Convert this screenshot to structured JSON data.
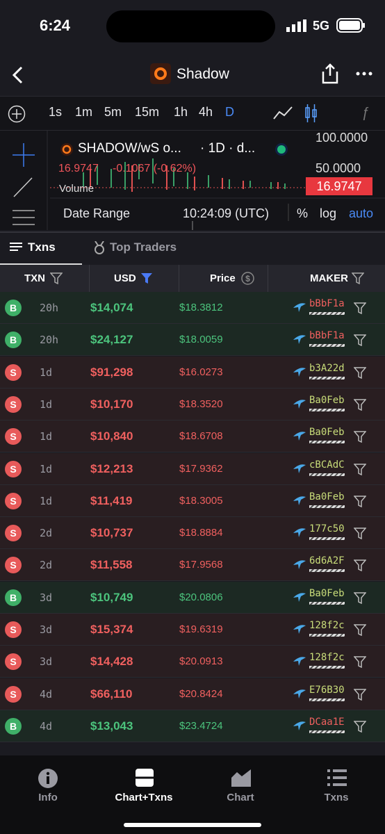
{
  "status": {
    "time": "6:24",
    "network": "5G"
  },
  "header": {
    "title": "Shadow"
  },
  "toolbar": {
    "timeframes": [
      "1s",
      "1m",
      "5m",
      "15m",
      "1h",
      "4h",
      "D"
    ]
  },
  "chart": {
    "pair": "SHADOW/wS o...",
    "interval": "· 1D · d...",
    "price": "16.9747",
    "change": "-0.1067 (-0.62%)",
    "volume_label": "Volume",
    "axis_top": "100.0000",
    "axis_mid": "50.0000",
    "last_price": "16.9747",
    "date_range": "Date Range",
    "clock": "10:24:09 (UTC)",
    "percent": "%",
    "log": "log",
    "auto": "auto"
  },
  "tabs": [
    "Txns",
    "Top Traders"
  ],
  "table": {
    "columns": [
      "TXN",
      "USD",
      "Price",
      "MAKER"
    ],
    "rows": [
      {
        "side": "B",
        "age": "20h",
        "usd": "$14,074",
        "price": "$18.3812",
        "maker": "bBbF1a",
        "maker_color": "#f0605f"
      },
      {
        "side": "B",
        "age": "20h",
        "usd": "$24,127",
        "price": "$18.0059",
        "maker": "bBbF1a",
        "maker_color": "#f0605f"
      },
      {
        "side": "S",
        "age": "1d",
        "usd": "$91,298",
        "price": "$16.0273",
        "maker": "b3A22d",
        "maker_color": "#c9dd7a"
      },
      {
        "side": "S",
        "age": "1d",
        "usd": "$10,170",
        "price": "$18.3520",
        "maker": "Ba0Feb",
        "maker_color": "#c9dd7a"
      },
      {
        "side": "S",
        "age": "1d",
        "usd": "$10,840",
        "price": "$18.6708",
        "maker": "Ba0Feb",
        "maker_color": "#c9dd7a"
      },
      {
        "side": "S",
        "age": "1d",
        "usd": "$12,213",
        "price": "$17.9362",
        "maker": "cBCAdC",
        "maker_color": "#c9dd7a"
      },
      {
        "side": "S",
        "age": "1d",
        "usd": "$11,419",
        "price": "$18.3005",
        "maker": "Ba0Feb",
        "maker_color": "#c9dd7a"
      },
      {
        "side": "S",
        "age": "2d",
        "usd": "$10,737",
        "price": "$18.8884",
        "maker": "177c50",
        "maker_color": "#c9dd7a"
      },
      {
        "side": "S",
        "age": "2d",
        "usd": "$11,558",
        "price": "$17.9568",
        "maker": "6d6A2F",
        "maker_color": "#c9dd7a"
      },
      {
        "side": "B",
        "age": "3d",
        "usd": "$10,749",
        "price": "$20.0806",
        "maker": "Ba0Feb",
        "maker_color": "#c9dd7a"
      },
      {
        "side": "S",
        "age": "3d",
        "usd": "$15,374",
        "price": "$19.6319",
        "maker": "128f2c",
        "maker_color": "#c9dd7a"
      },
      {
        "side": "S",
        "age": "3d",
        "usd": "$14,428",
        "price": "$20.0913",
        "maker": "128f2c",
        "maker_color": "#c9dd7a"
      },
      {
        "side": "S",
        "age": "4d",
        "usd": "$66,110",
        "price": "$20.8424",
        "maker": "E76B30",
        "maker_color": "#c9dd7a"
      },
      {
        "side": "B",
        "age": "4d",
        "usd": "$13,043",
        "price": "$23.4724",
        "maker": "DCaa1E",
        "maker_color": "#f0605f"
      }
    ]
  },
  "nav": [
    "Info",
    "Chart+Txns",
    "Chart",
    "Txns"
  ]
}
